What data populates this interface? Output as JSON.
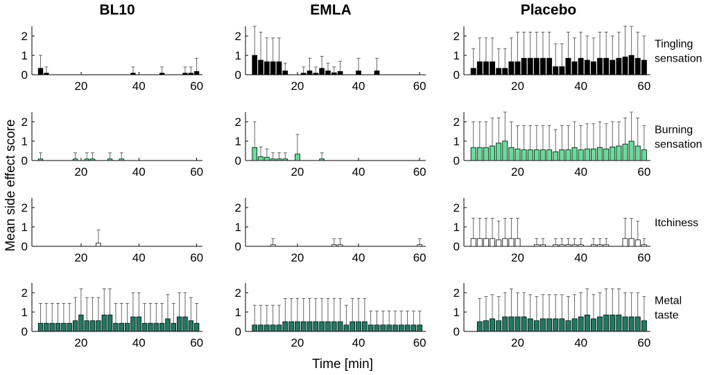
{
  "chart_data": {
    "type": "bar",
    "subtype": "grid-of-bar-charts-with-error-bars",
    "x_label": "Time [min]",
    "y_label": "Mean side effect score",
    "columns": [
      "BL10",
      "EMLA",
      "Placebo"
    ],
    "x_tick_labels": [
      "20",
      "40",
      "60"
    ],
    "x_ticks": [
      20,
      40,
      60
    ],
    "xlim": [
      3,
      62
    ],
    "y_tick_labels": [
      "0",
      "1",
      "2"
    ],
    "y_ticks": [
      0,
      1,
      2
    ],
    "ylim": [
      0,
      2.5
    ],
    "x": [
      6,
      8,
      10,
      12,
      14,
      16,
      18,
      20,
      22,
      24,
      26,
      28,
      30,
      32,
      34,
      36,
      38,
      40,
      42,
      44,
      46,
      48,
      50,
      52,
      54,
      56,
      58,
      60
    ],
    "rows": [
      {
        "label_lines": [
          "Tingling",
          "sensation"
        ],
        "color": "#000000",
        "panels": [
          {
            "column": "BL10",
            "means": [
              0.33,
              0.08,
              0,
              0,
              0,
              0,
              0,
              0,
              0,
              0,
              0,
              0,
              0,
              0,
              0,
              0,
              0.08,
              0,
              0,
              0,
              0,
              0.08,
              0,
              0,
              0,
              0.08,
              0.08,
              0.17
            ],
            "errors": [
              1.0,
              0.4,
              0,
              0,
              0,
              0,
              0,
              0,
              0,
              0,
              0,
              0,
              0,
              0,
              0,
              0,
              0.4,
              0,
              0,
              0,
              0,
              0.4,
              0,
              0,
              0,
              0.4,
              0.4,
              0.85
            ]
          },
          {
            "column": "EMLA",
            "means": [
              1.0,
              0.75,
              0.67,
              0.67,
              0.67,
              0.2,
              0,
              0,
              0.08,
              0.2,
              0.08,
              0.33,
              0.2,
              0.1,
              0.17,
              0,
              0,
              0.2,
              0,
              0,
              0.2,
              0,
              0,
              0,
              0,
              0,
              0,
              0
            ],
            "errors": [
              2.5,
              2.2,
              1.9,
              1.9,
              1.9,
              0.6,
              0,
              0,
              0.4,
              0.85,
              0.4,
              0.95,
              0.6,
              0.4,
              0.7,
              0,
              0,
              0.85,
              0,
              0,
              0.85,
              0,
              0,
              0,
              0,
              0,
              0,
              0
            ]
          },
          {
            "column": "Placebo",
            "means": [
              0.33,
              0.67,
              0.67,
              0.67,
              0.33,
              0.33,
              0.67,
              0.67,
              0.85,
              0.85,
              0.85,
              0.85,
              0.85,
              0.42,
              0.42,
              0.85,
              0.67,
              0.85,
              0.75,
              0.67,
              0.85,
              0.85,
              0.75,
              0.85,
              0.92,
              1.0,
              0.85,
              0.75
            ],
            "errors": [
              1.35,
              1.9,
              1.9,
              1.9,
              1.35,
              1.35,
              1.9,
              2.2,
              2.2,
              2.2,
              2.2,
              2.2,
              2.2,
              1.6,
              1.6,
              2.2,
              1.9,
              2.2,
              2.0,
              1.9,
              2.2,
              2.2,
              2.0,
              2.2,
              2.5,
              2.5,
              2.2,
              2.0
            ]
          }
        ]
      },
      {
        "label_lines": [
          "Burning",
          "sensation"
        ],
        "color": "#66dd99",
        "panels": [
          {
            "column": "BL10",
            "means": [
              0.08,
              0,
              0,
              0,
              0,
              0,
              0.08,
              0,
              0.08,
              0.08,
              0,
              0,
              0.08,
              0,
              0.08,
              0,
              0,
              0,
              0,
              0,
              0,
              0,
              0,
              0,
              0,
              0,
              0,
              0
            ],
            "errors": [
              0.4,
              0,
              0,
              0,
              0,
              0,
              0.4,
              0,
              0.4,
              0.4,
              0,
              0,
              0.4,
              0,
              0.4,
              0,
              0,
              0,
              0,
              0,
              0,
              0,
              0,
              0,
              0,
              0,
              0,
              0
            ]
          },
          {
            "column": "EMLA",
            "means": [
              0.67,
              0.2,
              0.17,
              0.08,
              0.08,
              0.08,
              0,
              0.33,
              0,
              0,
              0,
              0.08,
              0,
              0,
              0,
              0,
              0,
              0,
              0,
              0,
              0,
              0,
              0,
              0,
              0,
              0,
              0,
              0
            ],
            "errors": [
              2.0,
              0.7,
              0.6,
              0.4,
              0.4,
              0.4,
              0,
              1.35,
              0,
              0,
              0,
              0.4,
              0,
              0,
              0,
              0,
              0,
              0,
              0,
              0,
              0,
              0,
              0,
              0,
              0,
              0,
              0,
              0
            ]
          },
          {
            "column": "Placebo",
            "means": [
              0.67,
              0.67,
              0.67,
              0.75,
              0.9,
              1.0,
              0.67,
              0.6,
              0.55,
              0.55,
              0.55,
              0.55,
              0.55,
              0.45,
              0.55,
              0.55,
              0.67,
              0.55,
              0.6,
              0.6,
              0.67,
              0.6,
              0.7,
              0.75,
              0.85,
              1.0,
              0.75,
              0.55
            ],
            "errors": [
              2.0,
              2.0,
              2.0,
              2.2,
              2.2,
              2.5,
              2.0,
              1.8,
              1.8,
              1.8,
              1.8,
              1.8,
              1.8,
              1.6,
              1.8,
              1.8,
              2.0,
              1.8,
              1.9,
              1.9,
              2.0,
              1.9,
              2.0,
              2.0,
              2.2,
              2.5,
              2.2,
              1.8
            ]
          }
        ]
      },
      {
        "label_lines": [
          "Itchiness"
        ],
        "color": "#ffffff",
        "panels": [
          {
            "column": "BL10",
            "means": [
              0,
              0,
              0,
              0,
              0,
              0,
              0,
              0,
              0,
              0,
              0.17,
              0,
              0,
              0,
              0,
              0,
              0,
              0,
              0,
              0,
              0,
              0,
              0,
              0,
              0,
              0,
              0,
              0
            ],
            "errors": [
              0,
              0,
              0,
              0,
              0,
              0,
              0,
              0,
              0,
              0,
              0.85,
              0,
              0,
              0,
              0,
              0,
              0,
              0,
              0,
              0,
              0,
              0,
              0,
              0,
              0,
              0,
              0,
              0
            ]
          },
          {
            "column": "EMLA",
            "means": [
              0,
              0,
              0,
              0.08,
              0,
              0,
              0,
              0,
              0,
              0,
              0,
              0,
              0,
              0.08,
              0.08,
              0,
              0,
              0,
              0,
              0,
              0,
              0,
              0,
              0,
              0,
              0,
              0,
              0.08
            ],
            "errors": [
              0,
              0,
              0,
              0.4,
              0,
              0,
              0,
              0,
              0,
              0,
              0,
              0,
              0,
              0.4,
              0.4,
              0,
              0,
              0,
              0,
              0,
              0,
              0,
              0,
              0,
              0,
              0,
              0,
              0.4
            ]
          },
          {
            "column": "Placebo",
            "means": [
              0.4,
              0.4,
              0.4,
              0.4,
              0.33,
              0.4,
              0.4,
              0.4,
              0,
              0,
              0.08,
              0.08,
              0,
              0.08,
              0.08,
              0.08,
              0.08,
              0.08,
              0,
              0.08,
              0.08,
              0.08,
              0,
              0,
              0.4,
              0.4,
              0.33,
              0.08
            ],
            "errors": [
              1.45,
              1.45,
              1.45,
              1.45,
              1.3,
              1.45,
              1.45,
              1.45,
              0,
              0,
              0.4,
              0.4,
              0,
              0.4,
              0.4,
              0.4,
              0.4,
              0.4,
              0,
              0.4,
              0.4,
              0.4,
              0,
              0,
              1.45,
              1.45,
              1.3,
              0.4
            ]
          }
        ]
      },
      {
        "label_lines": [
          "Metal",
          "taste"
        ],
        "color": "#1f7a62",
        "panels": [
          {
            "column": "BL10",
            "means": [
              0.42,
              0.42,
              0.42,
              0.42,
              0.42,
              0.42,
              0.55,
              0.85,
              0.55,
              0.55,
              0.55,
              0.85,
              0.85,
              0.42,
              0.42,
              0.42,
              0.75,
              0.75,
              0.42,
              0.42,
              0.42,
              0.42,
              0.65,
              0.42,
              0.75,
              0.75,
              0.55,
              0.42
            ],
            "errors": [
              1.45,
              1.45,
              1.45,
              1.45,
              1.45,
              1.45,
              1.75,
              2.2,
              1.75,
              1.75,
              1.75,
              2.2,
              2.2,
              1.45,
              1.45,
              1.45,
              2.0,
              2.0,
              1.45,
              1.45,
              1.45,
              1.45,
              1.9,
              1.45,
              2.0,
              2.0,
              1.75,
              1.45
            ]
          },
          {
            "column": "EMLA",
            "means": [
              0.33,
              0.33,
              0.33,
              0.33,
              0.33,
              0.5,
              0.5,
              0.5,
              0.5,
              0.5,
              0.5,
              0.5,
              0.5,
              0.5,
              0.5,
              0.33,
              0.5,
              0.5,
              0.5,
              0.33,
              0.33,
              0.33,
              0.33,
              0.33,
              0.33,
              0.33,
              0.33,
              0.33
            ],
            "errors": [
              1.35,
              1.35,
              1.35,
              1.35,
              1.35,
              1.7,
              1.7,
              1.7,
              1.7,
              1.7,
              1.7,
              1.7,
              1.7,
              1.7,
              1.7,
              1.35,
              1.7,
              1.7,
              1.7,
              1.05,
              1.05,
              1.05,
              1.05,
              1.05,
              1.05,
              1.05,
              1.05,
              1.05
            ]
          },
          {
            "column": "Placebo",
            "means": [
              0,
              0.5,
              0.55,
              0.65,
              0.55,
              0.75,
              0.75,
              0.75,
              0.75,
              0.65,
              0.55,
              0.65,
              0.65,
              0.65,
              0.65,
              0.55,
              0.65,
              0.75,
              0.85,
              0.65,
              0.75,
              0.85,
              0.85,
              0.85,
              0.75,
              0.75,
              0.75,
              0.55
            ],
            "errors": [
              0,
              1.7,
              1.8,
              1.9,
              1.8,
              2.0,
              2.2,
              2.0,
              2.0,
              1.9,
              1.8,
              1.9,
              1.9,
              1.9,
              1.9,
              1.8,
              1.9,
              2.0,
              2.2,
              1.9,
              2.0,
              2.2,
              2.2,
              2.2,
              2.0,
              2.0,
              2.0,
              1.8
            ]
          }
        ]
      }
    ]
  }
}
